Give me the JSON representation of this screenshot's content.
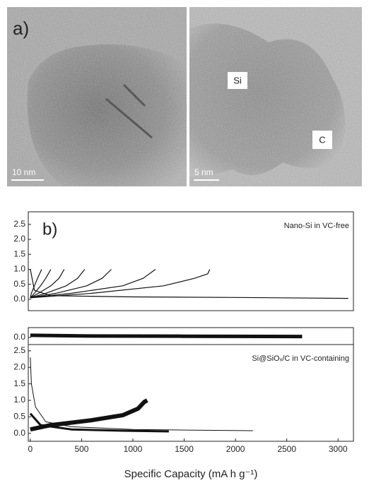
{
  "figure_a": {
    "label": "a)",
    "scale_bars": [
      "10 nm",
      "5 nm"
    ],
    "region_labels": [
      "Si",
      "C"
    ]
  },
  "chart_data": [
    {
      "type": "line",
      "title": "Nano-Si in VC-free",
      "panel_label": "b)",
      "xlim": [
        -20,
        3150
      ],
      "ylim": [
        -0.38,
        2.92
      ],
      "yticks": [
        {
          "value": 0,
          "label": "0.0"
        },
        0.5,
        {
          "value": 1,
          "label": "1.0"
        },
        1.5,
        {
          "value": 2,
          "label": "2.0"
        },
        2.5
      ],
      "series": [
        {
          "color": "#111",
          "x": [
            0,
            40,
            200,
            1000,
            2000,
            3100
          ],
          "values": [
            1.0,
            0.3,
            0.12,
            0.08,
            0.06,
            0.03
          ]
        },
        {
          "color": "#111",
          "x": [
            0,
            10,
            40,
            70,
            110
          ],
          "values": [
            0.05,
            0.2,
            0.45,
            0.7,
            1.0
          ]
        },
        {
          "color": "#111",
          "x": [
            0,
            40,
            100,
            150,
            200
          ],
          "values": [
            0.05,
            0.2,
            0.45,
            0.7,
            1.0
          ]
        },
        {
          "color": "#111",
          "x": [
            0,
            80,
            200,
            280,
            330
          ],
          "values": [
            0.05,
            0.2,
            0.45,
            0.7,
            1.0
          ]
        },
        {
          "color": "#111",
          "x": [
            0,
            150,
            350,
            460,
            530
          ],
          "values": [
            0.05,
            0.2,
            0.45,
            0.7,
            1.0
          ]
        },
        {
          "color": "#111",
          "x": [
            0,
            250,
            550,
            700,
            790
          ],
          "values": [
            0.05,
            0.2,
            0.45,
            0.7,
            1.0
          ]
        },
        {
          "color": "#111",
          "x": [
            0,
            400,
            900,
            1100,
            1220
          ],
          "values": [
            0.05,
            0.2,
            0.45,
            0.7,
            1.0
          ]
        },
        {
          "color": "#111",
          "x": [
            0,
            600,
            1300,
            1600,
            1730,
            1750
          ],
          "values": [
            0.05,
            0.2,
            0.45,
            0.7,
            0.85,
            1.0
          ]
        }
      ]
    },
    {
      "type": "line",
      "xlim": [
        -20,
        3150
      ],
      "ylim": [
        -0.24,
        0.33
      ],
      "yticks": [
        {
          "value": 0,
          "label": "0.0"
        }
      ],
      "series": [
        {
          "color": "#111",
          "line_width": 5,
          "x": [
            0,
            500,
            1500,
            2650
          ],
          "values": [
            0.07,
            0.05,
            0.04,
            0.03
          ]
        }
      ]
    },
    {
      "type": "line",
      "title": "Si@SiOₓ/C in VC-containing",
      "xlim": [
        -20,
        3150
      ],
      "ylim": [
        -0.24,
        2.69
      ],
      "yticks": [
        {
          "value": 0,
          "label": "0.0"
        },
        0.5,
        {
          "value": 1,
          "label": "1.0"
        },
        1.5,
        {
          "value": 2,
          "label": "2.0"
        },
        2.5
      ],
      "xticks": [
        0,
        500,
        1000,
        1500,
        2000,
        2500,
        3000
      ],
      "x_label": "Specific Capacity (mA h g⁻¹)",
      "series": [
        {
          "color": "#111",
          "line_width": 1,
          "x": [
            0,
            10,
            50,
            150,
            400,
            1000,
            1500,
            2170
          ],
          "values": [
            2.3,
            1.5,
            0.8,
            0.35,
            0.2,
            0.12,
            0.1,
            0.08
          ]
        },
        {
          "color": "#111",
          "line_width": 6,
          "x": [
            0,
            200,
            600,
            900,
            1050,
            1110,
            1140
          ],
          "values": [
            0.12,
            0.25,
            0.4,
            0.55,
            0.75,
            0.95,
            1.0
          ]
        },
        {
          "color": "#111",
          "line_width": 3,
          "x": [
            0,
            100,
            400,
            900,
            1350
          ],
          "values": [
            0.6,
            0.25,
            0.12,
            0.08,
            0.06
          ]
        }
      ]
    }
  ]
}
